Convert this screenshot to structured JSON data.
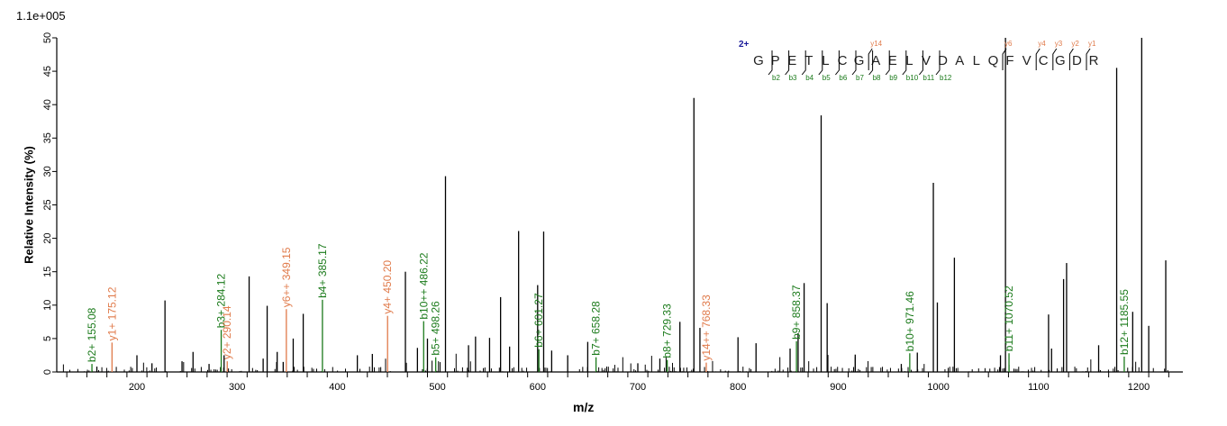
{
  "chart_data": {
    "type": "bar",
    "subtype": "mass-spectrum-stick",
    "title": "",
    "scale_label": "1.1e+005",
    "xlabel": "m/z",
    "ylabel": "Relative   Intensity (%)",
    "xlim": [
      120,
      1245
    ],
    "ylim": [
      0,
      50
    ],
    "xticks": [
      200,
      300,
      400,
      500,
      600,
      700,
      800,
      900,
      1000,
      1100,
      1200
    ],
    "yticks": [
      0,
      5,
      10,
      15,
      20,
      25,
      30,
      35,
      40,
      45,
      50
    ],
    "grid": false,
    "peptide": {
      "charge": "2+",
      "sequence": [
        "G",
        "P",
        "E",
        "T",
        "L",
        "C",
        "G",
        "A",
        "E",
        "L",
        "V",
        "D",
        "A",
        "L",
        "Q",
        "F",
        "V",
        "C",
        "G",
        "D",
        "R"
      ],
      "b_ions": [
        "b2",
        "b3",
        "b4",
        "b5",
        "b6",
        "b7",
        "b8",
        "b9",
        "b10",
        "b11",
        "b12"
      ],
      "y_ions": [
        "y14",
        "y6",
        "y4",
        "y3",
        "y2",
        "y1"
      ]
    },
    "annotated_peaks": [
      {
        "label": "b2+ 155.08",
        "mz": 155.08,
        "intensity": 1.2,
        "series": "b"
      },
      {
        "label": "y1+ 175.12",
        "mz": 175.12,
        "intensity": 4.4,
        "series": "y"
      },
      {
        "label": "b3+ 284.12",
        "mz": 284.12,
        "intensity": 6.3,
        "series": "b"
      },
      {
        "label": "y2+ 290.14",
        "mz": 290.14,
        "intensity": 1.6,
        "series": "y"
      },
      {
        "label": "y6++ 349.15",
        "mz": 349.15,
        "intensity": 9.4,
        "series": "y"
      },
      {
        "label": "b4+ 385.17",
        "mz": 385.17,
        "intensity": 10.8,
        "series": "b"
      },
      {
        "label": "y4+ 450.20",
        "mz": 450.2,
        "intensity": 8.4,
        "series": "y"
      },
      {
        "label": "b10++ 486.22",
        "mz": 486.22,
        "intensity": 7.6,
        "series": "b"
      },
      {
        "label": "b5+ 498.26",
        "mz": 498.26,
        "intensity": 2.2,
        "series": "b"
      },
      {
        "label": "b6+ 601.27",
        "mz": 601.27,
        "intensity": 3.4,
        "series": "b"
      },
      {
        "label": "b7+ 658.28",
        "mz": 658.28,
        "intensity": 2.2,
        "series": "b"
      },
      {
        "label": "b8+ 729.33",
        "mz": 729.33,
        "intensity": 1.8,
        "series": "b"
      },
      {
        "label": "y14++ 768.33",
        "mz": 768.33,
        "intensity": 1.4,
        "series": "y"
      },
      {
        "label": "b9+ 858.37",
        "mz": 858.37,
        "intensity": 4.6,
        "series": "b"
      },
      {
        "label": "b10+ 971.46",
        "mz": 971.46,
        "intensity": 2.8,
        "series": "b"
      },
      {
        "label": "b11+ 1070.52",
        "mz": 1070.52,
        "intensity": 2.8,
        "series": "b"
      },
      {
        "label": "b12+ 1185.55",
        "mz": 1185.55,
        "intensity": 2.3,
        "series": "b"
      }
    ],
    "major_peaks": [
      {
        "mz": 160,
        "intensity": 0.8
      },
      {
        "mz": 200,
        "intensity": 2.5
      },
      {
        "mz": 215,
        "intensity": 1.3
      },
      {
        "mz": 228,
        "intensity": 10.7
      },
      {
        "mz": 245,
        "intensity": 1.6
      },
      {
        "mz": 256,
        "intensity": 3.0
      },
      {
        "mz": 272,
        "intensity": 1.2
      },
      {
        "mz": 287,
        "intensity": 2.5
      },
      {
        "mz": 312,
        "intensity": 14.3
      },
      {
        "mz": 326,
        "intensity": 2.0
      },
      {
        "mz": 330,
        "intensity": 9.9
      },
      {
        "mz": 340,
        "intensity": 3.0
      },
      {
        "mz": 346,
        "intensity": 1.5
      },
      {
        "mz": 356,
        "intensity": 5.0
      },
      {
        "mz": 366,
        "intensity": 8.7
      },
      {
        "mz": 420,
        "intensity": 2.5
      },
      {
        "mz": 435,
        "intensity": 2.7
      },
      {
        "mz": 468,
        "intensity": 15.0
      },
      {
        "mz": 480,
        "intensity": 3.6
      },
      {
        "mz": 490,
        "intensity": 5.0
      },
      {
        "mz": 508,
        "intensity": 29.3
      },
      {
        "mz": 531,
        "intensity": 4.0
      },
      {
        "mz": 538,
        "intensity": 5.3
      },
      {
        "mz": 552,
        "intensity": 5.1
      },
      {
        "mz": 563,
        "intensity": 11.2
      },
      {
        "mz": 572,
        "intensity": 3.8
      },
      {
        "mz": 581,
        "intensity": 21.1
      },
      {
        "mz": 600,
        "intensity": 13.0
      },
      {
        "mz": 606,
        "intensity": 21.0
      },
      {
        "mz": 614,
        "intensity": 3.2
      },
      {
        "mz": 630,
        "intensity": 2.5
      },
      {
        "mz": 650,
        "intensity": 4.5
      },
      {
        "mz": 700,
        "intensity": 1.3
      },
      {
        "mz": 722,
        "intensity": 2.0
      },
      {
        "mz": 742,
        "intensity": 7.5
      },
      {
        "mz": 756,
        "intensity": 41.0
      },
      {
        "mz": 762,
        "intensity": 6.6
      },
      {
        "mz": 800,
        "intensity": 5.2
      },
      {
        "mz": 818,
        "intensity": 4.3
      },
      {
        "mz": 852,
        "intensity": 3.5
      },
      {
        "mz": 860,
        "intensity": 5.8
      },
      {
        "mz": 866,
        "intensity": 13.3
      },
      {
        "mz": 883,
        "intensity": 38.4
      },
      {
        "mz": 889,
        "intensity": 10.3
      },
      {
        "mz": 917,
        "intensity": 2.6
      },
      {
        "mz": 963,
        "intensity": 1.2
      },
      {
        "mz": 979,
        "intensity": 2.9
      },
      {
        "mz": 995,
        "intensity": 28.3
      },
      {
        "mz": 999,
        "intensity": 10.4
      },
      {
        "mz": 1016,
        "intensity": 17.1
      },
      {
        "mz": 1062,
        "intensity": 2.5
      },
      {
        "mz": 1067,
        "intensity": 50.0
      },
      {
        "mz": 1110,
        "intensity": 8.6
      },
      {
        "mz": 1113,
        "intensity": 3.5
      },
      {
        "mz": 1125,
        "intensity": 13.9
      },
      {
        "mz": 1128,
        "intensity": 16.3
      },
      {
        "mz": 1160,
        "intensity": 4.0
      },
      {
        "mz": 1178,
        "intensity": 45.5
      },
      {
        "mz": 1194,
        "intensity": 9.0
      },
      {
        "mz": 1203,
        "intensity": 50.0
      },
      {
        "mz": 1210,
        "intensity": 6.9
      },
      {
        "mz": 1227,
        "intensity": 16.7
      }
    ],
    "colors": {
      "b": "#1a7a1a",
      "y": "#e07a4a",
      "peak": "#000000",
      "charge": "#1a1a99"
    }
  }
}
